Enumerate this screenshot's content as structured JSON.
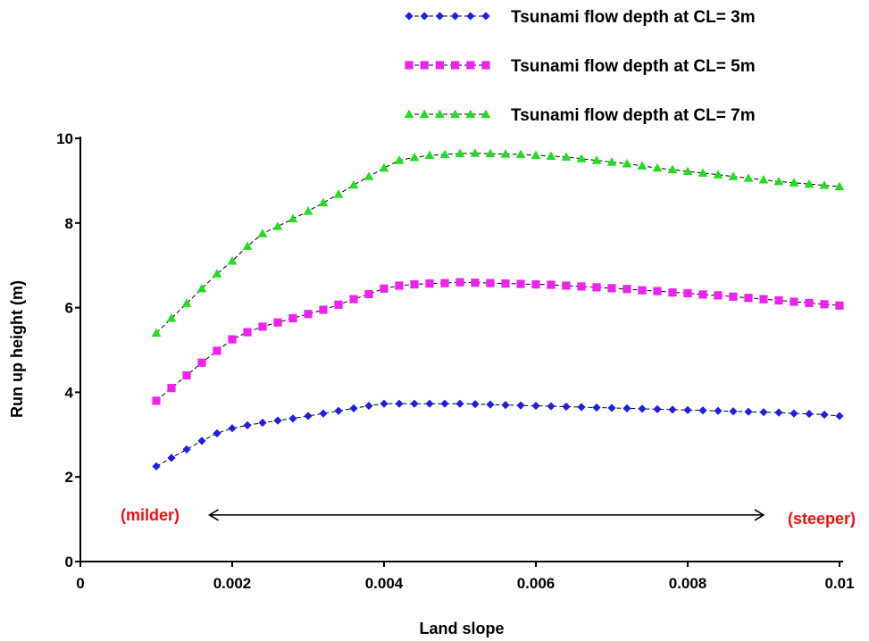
{
  "chart_data": {
    "type": "line",
    "xlabel": "Land slope",
    "ylabel": "Run up height (m)",
    "xlim": [
      0,
      0.01
    ],
    "ylim": [
      0,
      10
    ],
    "x_ticks": [
      0,
      0.002,
      0.004,
      0.006,
      0.008,
      0.01
    ],
    "x_tick_labels": [
      "0",
      "0.002",
      "0.004",
      "0.006",
      "0.008",
      "0.01"
    ],
    "y_ticks": [
      0,
      2,
      4,
      6,
      8,
      10
    ],
    "y_tick_labels": [
      "0",
      "2",
      "4",
      "6",
      "8",
      "10"
    ],
    "grid": false,
    "legend_position": "top-right",
    "series": [
      {
        "name": "Tsunami flow depth at CL= 3m",
        "color": "#1f1fe0",
        "marker": "diamond",
        "x": [
          0.001,
          0.0012,
          0.0014,
          0.0016,
          0.0018,
          0.002,
          0.0022,
          0.0024,
          0.0026,
          0.0028,
          0.003,
          0.0032,
          0.0034,
          0.0036,
          0.0038,
          0.004,
          0.0042,
          0.0044,
          0.0046,
          0.0048,
          0.005,
          0.0052,
          0.0054,
          0.0056,
          0.0058,
          0.006,
          0.0062,
          0.0064,
          0.0066,
          0.0068,
          0.007,
          0.0072,
          0.0074,
          0.0076,
          0.0078,
          0.008,
          0.0082,
          0.0084,
          0.0086,
          0.0088,
          0.009,
          0.0092,
          0.0094,
          0.0096,
          0.0098,
          0.01
        ],
        "y": [
          2.25,
          2.45,
          2.65,
          2.85,
          3.03,
          3.15,
          3.22,
          3.28,
          3.33,
          3.38,
          3.44,
          3.5,
          3.56,
          3.62,
          3.68,
          3.73,
          3.73,
          3.73,
          3.73,
          3.73,
          3.73,
          3.72,
          3.71,
          3.7,
          3.69,
          3.68,
          3.67,
          3.66,
          3.65,
          3.64,
          3.63,
          3.62,
          3.61,
          3.6,
          3.59,
          3.58,
          3.57,
          3.56,
          3.55,
          3.54,
          3.53,
          3.52,
          3.5,
          3.49,
          3.47,
          3.44
        ]
      },
      {
        "name": "Tsunami flow depth at CL= 5m",
        "color": "#ee22ee",
        "marker": "square",
        "x": [
          0.001,
          0.0012,
          0.0014,
          0.0016,
          0.0018,
          0.002,
          0.0022,
          0.0024,
          0.0026,
          0.0028,
          0.003,
          0.0032,
          0.0034,
          0.0036,
          0.0038,
          0.004,
          0.0042,
          0.0044,
          0.0046,
          0.0048,
          0.005,
          0.0052,
          0.0054,
          0.0056,
          0.0058,
          0.006,
          0.0062,
          0.0064,
          0.0066,
          0.0068,
          0.007,
          0.0072,
          0.0074,
          0.0076,
          0.0078,
          0.008,
          0.0082,
          0.0084,
          0.0086,
          0.0088,
          0.009,
          0.0092,
          0.0094,
          0.0096,
          0.0098,
          0.01
        ],
        "y": [
          3.8,
          4.1,
          4.4,
          4.7,
          4.98,
          5.25,
          5.42,
          5.55,
          5.65,
          5.75,
          5.85,
          5.95,
          6.07,
          6.2,
          6.32,
          6.45,
          6.52,
          6.55,
          6.57,
          6.58,
          6.6,
          6.59,
          6.58,
          6.57,
          6.56,
          6.55,
          6.54,
          6.52,
          6.5,
          6.48,
          6.46,
          6.44,
          6.41,
          6.39,
          6.36,
          6.34,
          6.31,
          6.29,
          6.26,
          6.23,
          6.2,
          6.17,
          6.14,
          6.11,
          6.08,
          6.05
        ]
      },
      {
        "name": "Tsunami flow depth at CL= 7m",
        "color": "#22dd22",
        "marker": "triangle",
        "x": [
          0.001,
          0.0012,
          0.0014,
          0.0016,
          0.0018,
          0.002,
          0.0022,
          0.0024,
          0.0026,
          0.0028,
          0.003,
          0.0032,
          0.0034,
          0.0036,
          0.0038,
          0.004,
          0.0042,
          0.0044,
          0.0046,
          0.0048,
          0.005,
          0.0052,
          0.0054,
          0.0056,
          0.0058,
          0.006,
          0.0062,
          0.0064,
          0.0066,
          0.0068,
          0.007,
          0.0072,
          0.0074,
          0.0076,
          0.0078,
          0.008,
          0.0082,
          0.0084,
          0.0086,
          0.0088,
          0.009,
          0.0092,
          0.0094,
          0.0096,
          0.0098,
          0.01
        ],
        "y": [
          5.4,
          5.75,
          6.1,
          6.45,
          6.8,
          7.1,
          7.45,
          7.75,
          7.92,
          8.1,
          8.28,
          8.48,
          8.68,
          8.9,
          9.1,
          9.3,
          9.48,
          9.55,
          9.6,
          9.62,
          9.64,
          9.65,
          9.64,
          9.63,
          9.62,
          9.6,
          9.58,
          9.56,
          9.52,
          9.48,
          9.44,
          9.4,
          9.35,
          9.3,
          9.26,
          9.22,
          9.18,
          9.14,
          9.1,
          9.06,
          9.02,
          8.98,
          8.95,
          8.92,
          8.89,
          8.86
        ]
      }
    ],
    "annotations": [
      {
        "text": "(milder)",
        "color": "#ee1111"
      },
      {
        "text": "(steeper)",
        "color": "#ee1111"
      }
    ],
    "arrow": {
      "x_start": 0.0017,
      "x_end": 0.009,
      "y": 1.1,
      "double_headed": true
    }
  }
}
